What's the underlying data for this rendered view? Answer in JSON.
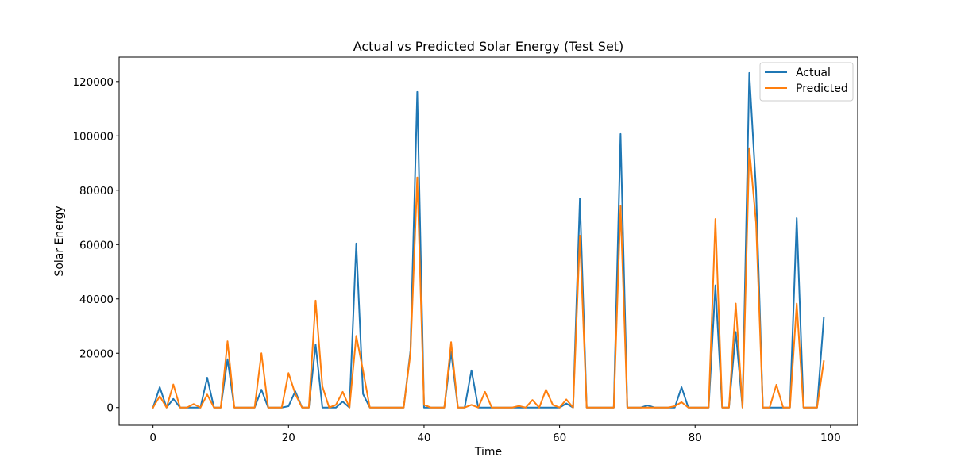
{
  "chart_data": {
    "type": "line",
    "title": "Actual vs Predicted Solar Energy (Test Set)",
    "xlabel": "Time",
    "ylabel": "Solar Energy",
    "xlim": [
      -5,
      104
    ],
    "ylim": [
      -6500,
      129000
    ],
    "xticks": [
      0,
      20,
      40,
      60,
      80,
      100
    ],
    "yticks": [
      0,
      20000,
      40000,
      60000,
      80000,
      100000,
      120000
    ],
    "grid": false,
    "legend_position": "top-right",
    "series": [
      {
        "name": "Actual",
        "color": "#1f77b4",
        "values": [
          0,
          7500,
          0,
          3200,
          0,
          0,
          0,
          0,
          11000,
          0,
          0,
          17800,
          0,
          0,
          0,
          0,
          6600,
          0,
          0,
          0,
          500,
          6000,
          0,
          0,
          23200,
          0,
          0,
          0,
          2200,
          0,
          60400,
          5000,
          0,
          0,
          0,
          0,
          0,
          0,
          21000,
          116200,
          0,
          0,
          0,
          0,
          20500,
          0,
          0,
          13700,
          0,
          0,
          0,
          0,
          0,
          0,
          0,
          0,
          0,
          0,
          0,
          0,
          0,
          1500,
          0,
          77000,
          0,
          0,
          0,
          0,
          0,
          100700,
          0,
          0,
          0,
          800,
          0,
          0,
          0,
          0,
          7500,
          0,
          0,
          0,
          0,
          45000,
          0,
          0,
          27800,
          0,
          123200,
          80000,
          0,
          0,
          0,
          0,
          0,
          69700,
          0,
          0,
          0,
          33200
        ]
      },
      {
        "name": "Predicted",
        "color": "#ff7f0e",
        "values": [
          0,
          4200,
          0,
          8500,
          0,
          0,
          1300,
          0,
          4800,
          0,
          0,
          24400,
          0,
          0,
          0,
          0,
          20000,
          0,
          0,
          0,
          12700,
          5000,
          0,
          0,
          39400,
          7800,
          0,
          1000,
          5800,
          0,
          26400,
          13600,
          0,
          0,
          0,
          0,
          0,
          0,
          20000,
          84700,
          1000,
          0,
          0,
          0,
          24100,
          0,
          0,
          1000,
          0,
          5800,
          0,
          0,
          0,
          0,
          600,
          0,
          2800,
          0,
          6600,
          1000,
          0,
          3000,
          0,
          63300,
          0,
          0,
          0,
          0,
          0,
          74200,
          0,
          0,
          0,
          0,
          0,
          0,
          0,
          500,
          2000,
          0,
          0,
          0,
          0,
          69400,
          0,
          0,
          38300,
          0,
          95500,
          68000,
          0,
          0,
          8400,
          0,
          0,
          38300,
          0,
          0,
          0,
          17100
        ]
      }
    ]
  }
}
